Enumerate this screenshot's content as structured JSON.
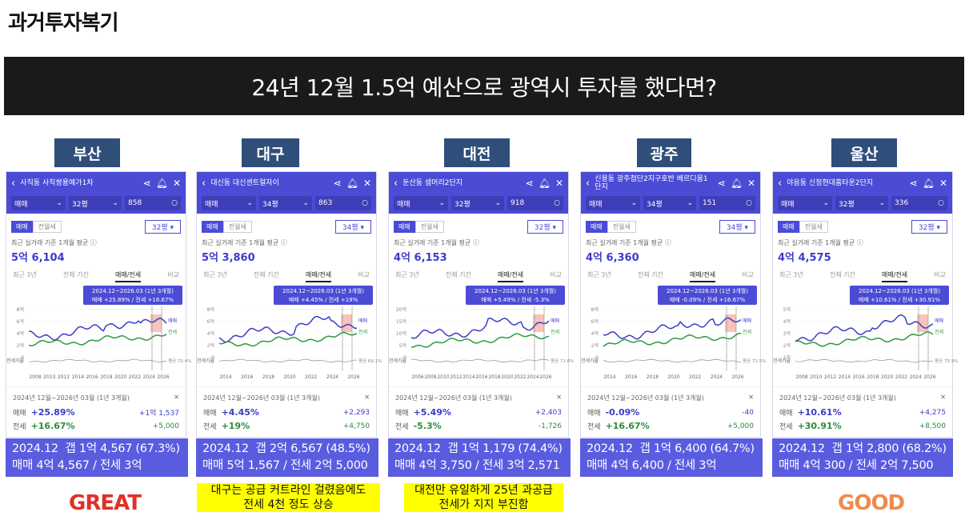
{
  "page_title": "과거투자복기",
  "banner": "24년 12월 1.5억 예산으로 광역시 투자를 했다면?",
  "common": {
    "trade_tab": "매매",
    "rent_tab": "전월세",
    "note": "최근 실거래 기준 1개월 평균 ⓘ",
    "subtabs": [
      "최근 3년",
      "전체 기간",
      "매매/전세",
      "비교"
    ],
    "trade_label": "매매",
    "jeonse_label": "전세",
    "close": "✕"
  },
  "colors": {
    "banner": "#1a1a1a",
    "label": "#2f4f7a",
    "app": "#4b4bd6",
    "summary": "#5a5ce0",
    "great": "#e0302a",
    "good": "#f08a4b"
  },
  "cards": [
    {
      "city": "부산",
      "apt": "사직동 사직쌍용예가1차",
      "size": "32평",
      "count": "858",
      "avg_price": "5억 6,104",
      "tooltip_range": "2024.12~2026.03 (1년 3개월)",
      "tooltip_values": "매매 +25.89% / 전세 +16.67%",
      "range": "2024년 12월~2026년 03월 (1년 3개월)",
      "trade_pct": "+25.89%",
      "trade_amt": "+1억 1,537",
      "jeonse_pct": "+16.67%",
      "jeonse_amt": "+5,000",
      "y_ticks": [
        "8억",
        "6억",
        "4억",
        "2억",
        "0"
      ],
      "x_ticks": [
        "2008",
        "2010",
        "2012",
        "2014",
        "2016",
        "2018",
        "2020",
        "2022",
        "2024",
        "2026"
      ],
      "rate_label": "평균 72.4%",
      "summary_1": "2024.12  갭 1억 4,567 (67.3%)",
      "summary_2": "매매 4억 4,567 / 전세 3억",
      "highlight": "",
      "rating": "GREAT"
    },
    {
      "city": "대구",
      "apt": "대신동 대신센트럴자이",
      "size": "34평",
      "count": "863",
      "avg_price": "5억 3,860",
      "tooltip_range": "2024.12~2026.03 (1년 3개월)",
      "tooltip_values": "매매 +4.45% / 전세 +19%",
      "range": "2024년 12월~2026년 03월 (1년 3개월)",
      "trade_pct": "+4.45%",
      "trade_amt": "+2,293",
      "jeonse_pct": "+19%",
      "jeonse_amt": "+4,750",
      "y_ticks": [
        "8억",
        "6억",
        "4억",
        "2억",
        "0"
      ],
      "x_ticks": [
        "2014",
        "2016",
        "2018",
        "2020",
        "2022",
        "2024",
        "2026"
      ],
      "rate_label": "평균 69.1%",
      "summary_1": "2024.12  갭 2억 6,567 (48.5%)",
      "summary_2": "매매 5억 1,567 / 전세 2억 5,000",
      "highlight": "대구는 공급 커트라인 걸렸음에도\n전세 4천 정도 상승",
      "rating": ""
    },
    {
      "city": "대전",
      "apt": "둔산동 샘머리2단지",
      "size": "32평",
      "count": "918",
      "avg_price": "4억 6,153",
      "tooltip_range": "2024.12~2026.03 (1년 3개월)",
      "tooltip_values": "매매 +5.49% / 전세 -5.3%",
      "range": "2024년 12월~2026년 03월 (1년 3개월)",
      "trade_pct": "+5.49%",
      "trade_amt": "+2,403",
      "jeonse_pct": "-5.3%",
      "jeonse_amt": "-1,726",
      "y_ticks": [
        "20억",
        "15억",
        "10억",
        "5억",
        "0"
      ],
      "x_ticks": [
        "2006",
        "2008",
        "2010",
        "2012",
        "2014",
        "2016",
        "2018",
        "2020",
        "2022",
        "2024",
        "2026"
      ],
      "rate_label": "평균 71.8%",
      "summary_1": "2024.12  갭 1억 1,179 (74.4%)",
      "summary_2": "매매 4억 3,750 / 전세 3억 2,571",
      "highlight": "대전만 유일하게 25년 과공급\n전세가 지지 부진함",
      "rating": ""
    },
    {
      "city": "광주",
      "apt": "신용동 광주첨단2지구호반 베르디움1단지",
      "size": "34평",
      "count": "151",
      "avg_price": "4억 6,360",
      "tooltip_range": "2024.12~2026.03 (1년 3개월)",
      "tooltip_values": "매매 -0.09% / 전세 +16.67%",
      "range": "2024년 12월~2026년 03월 (1년 3개월)",
      "trade_pct": "-0.09%",
      "trade_amt": "-40",
      "jeonse_pct": "+16.67%",
      "jeonse_amt": "+5,000",
      "y_ticks": [
        "8억",
        "6억",
        "4억",
        "2억",
        "0"
      ],
      "x_ticks": [
        "2014",
        "2016",
        "2018",
        "2020",
        "2022",
        "2024",
        "2026"
      ],
      "rate_label": "평균 71.5%",
      "summary_1": "2024.12  갭 1억 6,400 (64.7%)",
      "summary_2": "매매 4억 6,400 / 전세 3억",
      "highlight": "",
      "rating": ""
    },
    {
      "city": "울산",
      "apt": "야음동 신정현대홈타운2단지",
      "size": "32평",
      "count": "336",
      "avg_price": "4억 4,575",
      "tooltip_range": "2024.12~2026.03 (1년 3개월)",
      "tooltip_values": "매매 +10.61% / 전세 +30.91%",
      "range": "2024년 12월~2026년 03월 (1년 3개월)",
      "trade_pct": "+10.61%",
      "trade_amt": "+4,275",
      "jeonse_pct": "+30.91%",
      "jeonse_amt": "+8,500",
      "y_ticks": [
        "5억",
        "4억",
        "3억",
        "2억",
        "1억"
      ],
      "x_ticks": [
        "2008",
        "2010",
        "2012",
        "2014",
        "2016",
        "2018",
        "2020",
        "2022",
        "2024",
        "2026"
      ],
      "rate_label": "평균 75.9%",
      "summary_1": "2024.12  갭 1억 2,800 (68.2%)",
      "summary_2": "매매 4억 300 / 전세 2억 7,500",
      "highlight": "",
      "rating": "GOOD"
    }
  ]
}
